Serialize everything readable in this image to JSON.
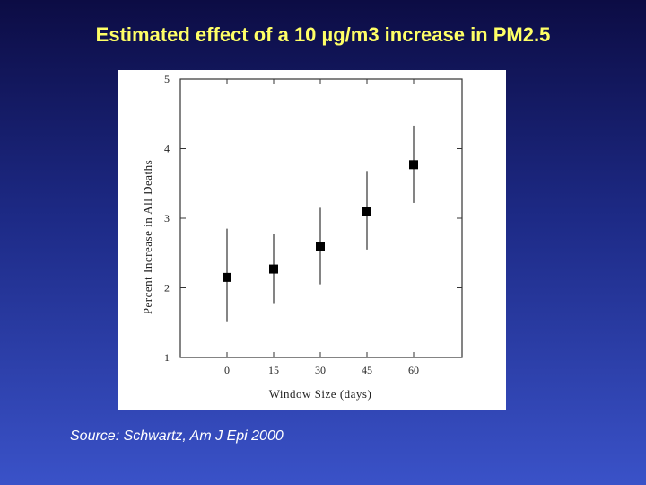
{
  "slide": {
    "title": "Estimated effect of a 10 µg/m3 increase in PM2.5",
    "source": "Source: Schwartz, Am J Epi 2000"
  },
  "chart_data": {
    "type": "scatter",
    "xlabel": "Window Size (days)",
    "ylabel": "Percent Increase in All Deaths",
    "x_categories": [
      "0",
      "15",
      "30",
      "45",
      "60"
    ],
    "y_ticks": [
      "1",
      "2",
      "3",
      "4",
      "5"
    ],
    "ylim": [
      1,
      5
    ],
    "series": [
      {
        "values": [
          2.15,
          2.27,
          2.59,
          3.1,
          3.77
        ],
        "ci_low": [
          1.52,
          1.78,
          2.05,
          2.55,
          3.22
        ],
        "ci_high": [
          2.85,
          2.78,
          3.15,
          3.68,
          4.33
        ]
      }
    ],
    "grid": false,
    "marker": "square",
    "colors": {
      "marker": "#000000",
      "axis": "#333333"
    }
  }
}
